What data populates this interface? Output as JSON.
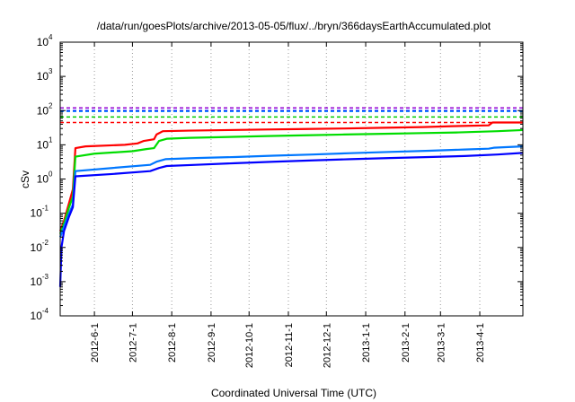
{
  "chart_data": {
    "type": "line",
    "title": "/data/run/goesPlots/archive/2013-05-05/flux/../bryn/366daysEarthAccumulated.plot",
    "xlabel": "Coordinated Universal Time (UTC)",
    "ylabel": "cSv",
    "yscale": "log",
    "ylim": [
      0.0001,
      10000
    ],
    "xlim": [
      "2012-05-05",
      "2013-05-05"
    ],
    "grid": "vertical dotted at date ticks",
    "legend": "none",
    "yticks": [
      {
        "base": "10",
        "exp": "4",
        "value": 10000
      },
      {
        "base": "10",
        "exp": "3",
        "value": 1000
      },
      {
        "base": "10",
        "exp": "2",
        "value": 100
      },
      {
        "base": "10",
        "exp": "1",
        "value": 10
      },
      {
        "base": "10",
        "exp": "0",
        "value": 1
      },
      {
        "base": "10",
        "exp": "-1",
        "value": 0.1
      },
      {
        "base": "10",
        "exp": "-2",
        "value": 0.01
      },
      {
        "base": "10",
        "exp": "-3",
        "value": 0.001
      },
      {
        "base": "10",
        "exp": "-4",
        "value": 0.0001
      }
    ],
    "xticks": [
      {
        "label": "2012-6-1",
        "date": "2012-06-01"
      },
      {
        "label": "2012-7-1",
        "date": "2012-07-01"
      },
      {
        "label": "2012-8-1",
        "date": "2012-08-01"
      },
      {
        "label": "2012-9-1",
        "date": "2012-09-01"
      },
      {
        "label": "2012-10-1",
        "date": "2012-10-01"
      },
      {
        "label": "2012-11-1",
        "date": "2012-11-01"
      },
      {
        "label": "2012-12-1",
        "date": "2012-12-01"
      },
      {
        "label": "2013-1-1",
        "date": "2013-01-01"
      },
      {
        "label": "2013-2-1",
        "date": "2013-02-01"
      },
      {
        "label": "2013-3-1",
        "date": "2013-03-01"
      },
      {
        "label": "2013-4-1",
        "date": "2013-04-01"
      }
    ],
    "thresholds": [
      {
        "color": "#9400d3",
        "y": 120
      },
      {
        "color": "#0000ff",
        "y": 100
      },
      {
        "color": "#0077ff",
        "y": 95
      },
      {
        "color": "#00cc00",
        "y": 65
      },
      {
        "color": "#ff0000",
        "y": 45
      }
    ],
    "series": [
      {
        "color": "#ff0000",
        "points": [
          [
            "2012-05-05",
            0.03
          ],
          [
            "2012-05-08",
            0.06
          ],
          [
            "2012-05-12",
            0.2
          ],
          [
            "2012-05-15",
            0.5
          ],
          [
            "2012-05-17",
            8.0
          ],
          [
            "2012-05-25",
            9.0
          ],
          [
            "2012-06-25",
            10.0
          ],
          [
            "2012-07-05",
            11.0
          ],
          [
            "2012-07-10",
            13.0
          ],
          [
            "2012-07-18",
            14.5
          ],
          [
            "2012-07-20",
            20.0
          ],
          [
            "2012-07-25",
            25.0
          ],
          [
            "2012-08-15",
            26.0
          ],
          [
            "2012-09-15",
            27.0
          ],
          [
            "2012-10-15",
            28.0
          ],
          [
            "2012-11-15",
            29.0
          ],
          [
            "2012-12-15",
            30.0
          ],
          [
            "2013-01-15",
            31.5
          ],
          [
            "2013-02-15",
            33.0
          ],
          [
            "2013-03-10",
            35.0
          ],
          [
            "2013-04-08",
            37.0
          ],
          [
            "2013-04-11",
            45.0
          ],
          [
            "2013-05-05",
            45.0
          ]
        ]
      },
      {
        "color": "#00dd00",
        "points": [
          [
            "2012-05-05",
            0.025
          ],
          [
            "2012-05-08",
            0.05
          ],
          [
            "2012-05-12",
            0.15
          ],
          [
            "2012-05-15",
            0.3
          ],
          [
            "2012-05-17",
            4.5
          ],
          [
            "2012-06-01",
            5.5
          ],
          [
            "2012-07-01",
            6.5
          ],
          [
            "2012-07-12",
            7.5
          ],
          [
            "2012-07-18",
            8.0
          ],
          [
            "2012-07-22",
            13.0
          ],
          [
            "2012-07-28",
            15.0
          ],
          [
            "2012-08-15",
            16.0
          ],
          [
            "2012-09-15",
            17.0
          ],
          [
            "2012-10-15",
            18.0
          ],
          [
            "2012-11-15",
            19.0
          ],
          [
            "2012-12-15",
            20.0
          ],
          [
            "2013-01-15",
            21.0
          ],
          [
            "2013-02-15",
            22.0
          ],
          [
            "2013-03-15",
            23.0
          ],
          [
            "2013-04-15",
            25.0
          ],
          [
            "2013-05-05",
            27.0
          ]
        ]
      },
      {
        "color": "#0077ff",
        "points": [
          [
            "2012-05-05",
            0.02
          ],
          [
            "2012-05-08",
            0.04
          ],
          [
            "2012-05-12",
            0.1
          ],
          [
            "2012-05-15",
            0.18
          ],
          [
            "2012-05-17",
            1.7
          ],
          [
            "2012-06-15",
            2.1
          ],
          [
            "2012-07-15",
            2.6
          ],
          [
            "2012-07-20",
            3.2
          ],
          [
            "2012-07-27",
            3.8
          ],
          [
            "2012-08-20",
            4.1
          ],
          [
            "2012-09-20",
            4.4
          ],
          [
            "2012-10-20",
            4.8
          ],
          [
            "2012-11-20",
            5.2
          ],
          [
            "2012-12-20",
            5.7
          ],
          [
            "2013-01-20",
            6.2
          ],
          [
            "2013-02-20",
            6.7
          ],
          [
            "2013-03-20",
            7.3
          ],
          [
            "2013-04-08",
            7.7
          ],
          [
            "2013-04-12",
            8.2
          ],
          [
            "2013-05-05",
            9.0
          ]
        ]
      },
      {
        "color": "#0000ff",
        "points": [
          [
            "2012-05-05",
            0.0007
          ],
          [
            "2012-05-06",
            0.01
          ],
          [
            "2012-05-08",
            0.03
          ],
          [
            "2012-05-12",
            0.08
          ],
          [
            "2012-05-15",
            0.15
          ],
          [
            "2012-05-17",
            1.2
          ],
          [
            "2012-06-15",
            1.4
          ],
          [
            "2012-07-15",
            1.7
          ],
          [
            "2012-07-22",
            2.1
          ],
          [
            "2012-07-28",
            2.4
          ],
          [
            "2012-08-20",
            2.6
          ],
          [
            "2012-09-20",
            2.9
          ],
          [
            "2012-10-20",
            3.2
          ],
          [
            "2012-11-20",
            3.5
          ],
          [
            "2012-12-20",
            3.8
          ],
          [
            "2013-01-20",
            4.1
          ],
          [
            "2013-02-20",
            4.4
          ],
          [
            "2013-03-20",
            4.7
          ],
          [
            "2013-04-15",
            5.2
          ],
          [
            "2013-05-05",
            5.8
          ]
        ]
      }
    ]
  }
}
